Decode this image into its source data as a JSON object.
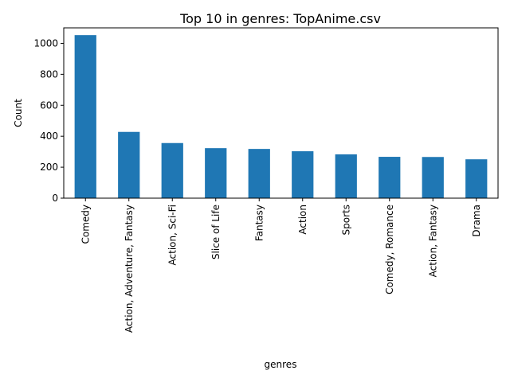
{
  "chart_data": {
    "type": "bar",
    "title": "Top 10 in genres: TopAnime.csv",
    "xlabel": "genres",
    "ylabel": "Count",
    "categories": [
      "Comedy",
      "Action, Adventure, Fantasy",
      "Action, Sci-Fi",
      "Slice of Life",
      "Fantasy",
      "Action",
      "Sports",
      "Comedy, Romance",
      "Action, Fantasy",
      "Drama"
    ],
    "values": [
      1053,
      428,
      356,
      323,
      318,
      303,
      283,
      267,
      266,
      251
    ],
    "ylim": [
      0,
      1100
    ],
    "yticks": [
      0,
      200,
      400,
      600,
      800,
      1000
    ],
    "bar_color": "#1f77b4",
    "grid": false,
    "legend": "none"
  }
}
